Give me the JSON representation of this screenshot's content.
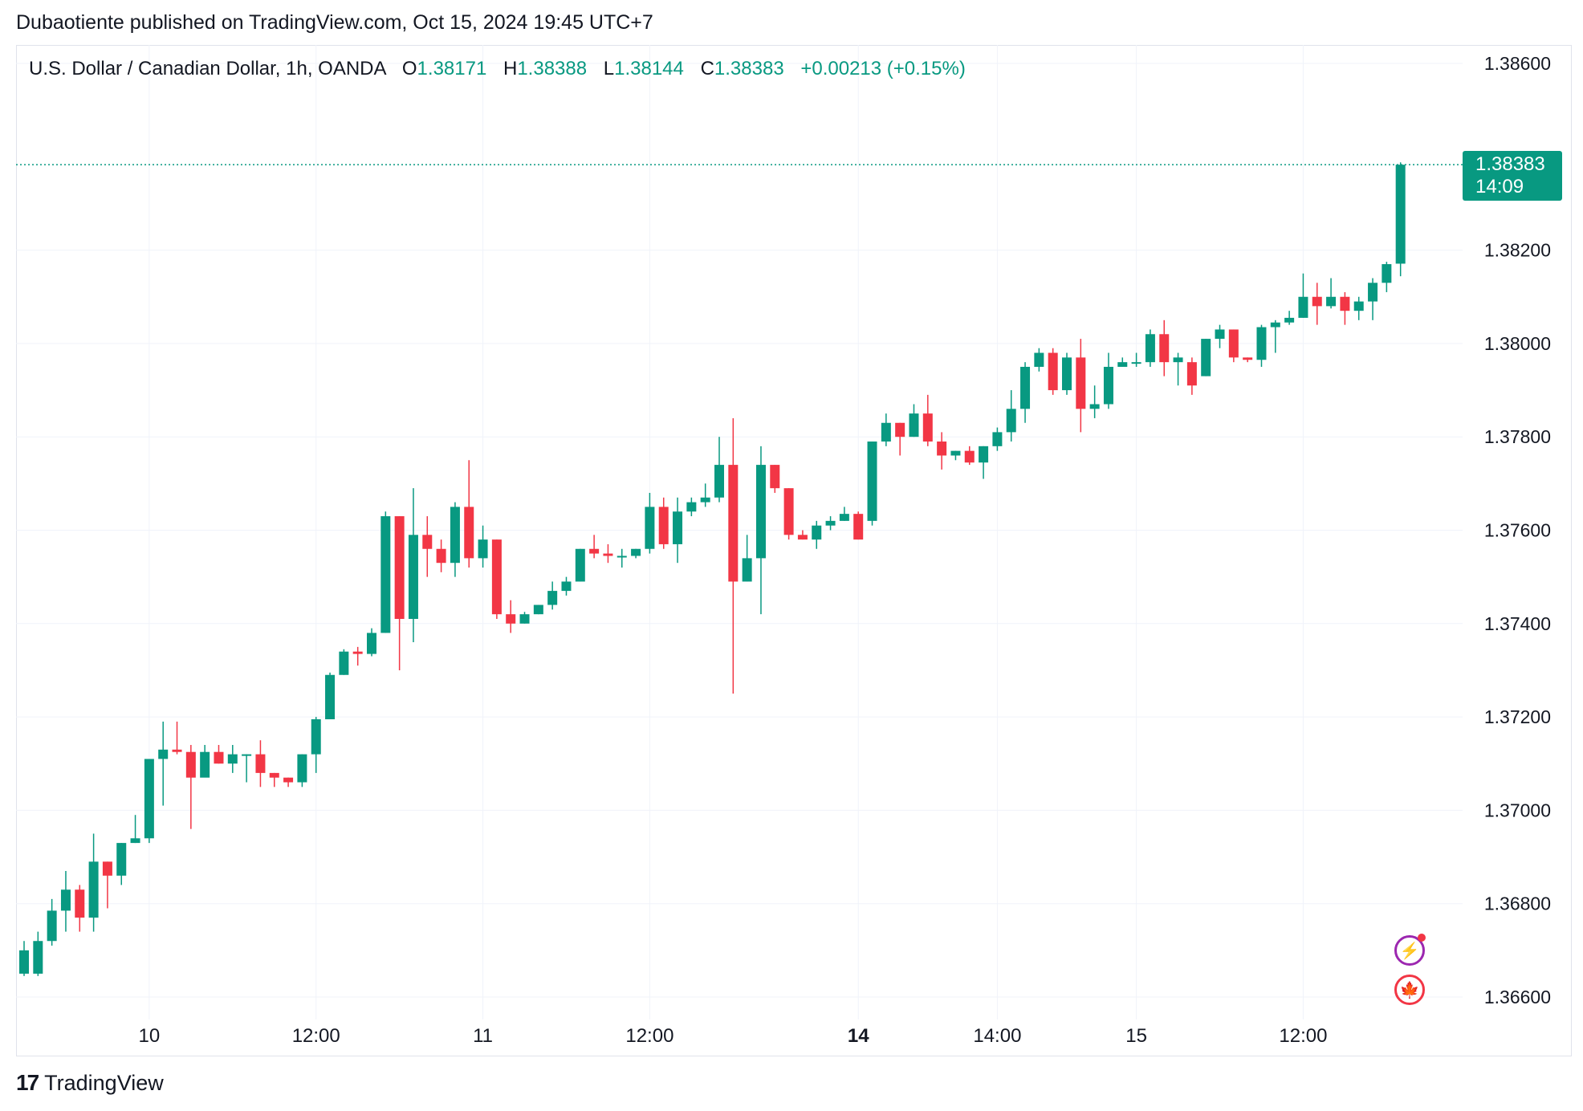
{
  "header": {
    "publisher_line": "Dubaotiente published on TradingView.com, Oct 15, 2024 19:45 UTC+7"
  },
  "legend": {
    "symbol": "U.S. Dollar / Canadian Dollar, 1h, OANDA",
    "open_label": "O",
    "open_value": "1.38171",
    "high_label": "H",
    "high_value": "1.38388",
    "low_label": "L",
    "low_value": "1.38144",
    "close_label": "C",
    "close_value": "1.38383",
    "change": "+0.00213 (+0.15%)"
  },
  "last_price": {
    "price": "1.38383",
    "countdown": "14:09"
  },
  "footer": {
    "brand": "TradingView",
    "logo_text": "17"
  },
  "badges": {
    "bolt": "bolt-icon",
    "flag": "canada-flag-icon"
  },
  "colors": {
    "up": "#089981",
    "down": "#f23645",
    "grid": "#f0f3fa",
    "axis_text": "#131722"
  },
  "chart_data": {
    "type": "candlestick",
    "ylim": [
      1.3656,
      1.3866
    ],
    "y_ticks": [
      "1.38600",
      "1.38200",
      "1.38000",
      "1.37800",
      "1.37600",
      "1.37400",
      "1.37200",
      "1.37000",
      "1.36800",
      "1.36600"
    ],
    "x_ticks": [
      {
        "label": "10",
        "index": 9,
        "bold": false
      },
      {
        "label": "12:00",
        "index": 21,
        "bold": false
      },
      {
        "label": "11",
        "index": 33,
        "bold": false
      },
      {
        "label": "12:00",
        "index": 45,
        "bold": false
      },
      {
        "label": "14",
        "index": 60,
        "bold": true
      },
      {
        "label": "14:00",
        "index": 70,
        "bold": false
      },
      {
        "label": "15",
        "index": 80,
        "bold": false
      },
      {
        "label": "12:00",
        "index": 92,
        "bold": false
      }
    ],
    "last_price_value": 1.38383,
    "ohlc": [
      [
        1.3665,
        1.3672,
        1.36645,
        1.367
      ],
      [
        1.3665,
        1.3674,
        1.36645,
        1.3672
      ],
      [
        1.3672,
        1.3681,
        1.3671,
        1.36785
      ],
      [
        1.36785,
        1.3687,
        1.3674,
        1.3683
      ],
      [
        1.3683,
        1.3684,
        1.3674,
        1.3677
      ],
      [
        1.3677,
        1.3695,
        1.3674,
        1.3689
      ],
      [
        1.3689,
        1.3689,
        1.3679,
        1.3686
      ],
      [
        1.3686,
        1.3693,
        1.3684,
        1.3693
      ],
      [
        1.3693,
        1.3699,
        1.3693,
        1.3694
      ],
      [
        1.3694,
        1.371,
        1.3693,
        1.3711
      ],
      [
        1.3711,
        1.3719,
        1.3701,
        1.3713
      ],
      [
        1.3713,
        1.3719,
        1.3712,
        1.37125
      ],
      [
        1.37125,
        1.3714,
        1.3696,
        1.3707
      ],
      [
        1.3707,
        1.3714,
        1.3708,
        1.37125
      ],
      [
        1.37125,
        1.3714,
        1.371,
        1.371
      ],
      [
        1.371,
        1.3714,
        1.3708,
        1.3712
      ],
      [
        1.3712,
        1.3712,
        1.3706,
        1.3712
      ],
      [
        1.3712,
        1.3715,
        1.3705,
        1.3708
      ],
      [
        1.3708,
        1.3708,
        1.3705,
        1.3707
      ],
      [
        1.3707,
        1.3707,
        1.3705,
        1.3706
      ],
      [
        1.3706,
        1.3712,
        1.3705,
        1.3712
      ],
      [
        1.3712,
        1.372,
        1.3708,
        1.37195
      ],
      [
        1.37195,
        1.37295,
        1.37195,
        1.3729
      ],
      [
        1.3729,
        1.37345,
        1.3729,
        1.3734
      ],
      [
        1.3734,
        1.3735,
        1.3731,
        1.37335
      ],
      [
        1.37335,
        1.3739,
        1.3733,
        1.3738
      ],
      [
        1.3738,
        1.3764,
        1.3738,
        1.3763
      ],
      [
        1.3763,
        1.3763,
        1.373,
        1.3741
      ],
      [
        1.3741,
        1.3769,
        1.3736,
        1.3759
      ],
      [
        1.3759,
        1.3763,
        1.375,
        1.3756
      ],
      [
        1.3756,
        1.3758,
        1.3751,
        1.3753
      ],
      [
        1.3753,
        1.3766,
        1.375,
        1.3765
      ],
      [
        1.3765,
        1.3775,
        1.3752,
        1.3754
      ],
      [
        1.3754,
        1.3761,
        1.3752,
        1.3758
      ],
      [
        1.3758,
        1.3758,
        1.3741,
        1.3742
      ],
      [
        1.3742,
        1.3745,
        1.3738,
        1.374
      ],
      [
        1.374,
        1.37425,
        1.374,
        1.3742
      ],
      [
        1.3742,
        1.3744,
        1.3742,
        1.3744
      ],
      [
        1.3744,
        1.3749,
        1.3743,
        1.3747
      ],
      [
        1.3747,
        1.375,
        1.3746,
        1.3749
      ],
      [
        1.3749,
        1.3756,
        1.3749,
        1.3756
      ],
      [
        1.3756,
        1.3759,
        1.3754,
        1.3755
      ],
      [
        1.3755,
        1.3757,
        1.3753,
        1.37545
      ],
      [
        1.37545,
        1.3756,
        1.3752,
        1.37545
      ],
      [
        1.37545,
        1.3756,
        1.3754,
        1.3756
      ],
      [
        1.3756,
        1.3768,
        1.3755,
        1.3765
      ],
      [
        1.3765,
        1.3767,
        1.3756,
        1.3757
      ],
      [
        1.3757,
        1.3767,
        1.3753,
        1.3764
      ],
      [
        1.3764,
        1.3767,
        1.3763,
        1.3766
      ],
      [
        1.3766,
        1.377,
        1.3765,
        1.3767
      ],
      [
        1.3767,
        1.378,
        1.3766,
        1.3774
      ],
      [
        1.3774,
        1.3784,
        1.3725,
        1.3749
      ],
      [
        1.3749,
        1.3759,
        1.3749,
        1.3754
      ],
      [
        1.3754,
        1.3778,
        1.3742,
        1.3774
      ],
      [
        1.3774,
        1.3774,
        1.3768,
        1.3769
      ],
      [
        1.3769,
        1.3769,
        1.3758,
        1.3759
      ],
      [
        1.3759,
        1.376,
        1.3758,
        1.3758
      ],
      [
        1.3758,
        1.3762,
        1.3756,
        1.3761
      ],
      [
        1.3761,
        1.3763,
        1.376,
        1.3762
      ],
      [
        1.3762,
        1.3765,
        1.3762,
        1.37635
      ],
      [
        1.37635,
        1.3764,
        1.3758,
        1.3758
      ],
      [
        1.3762,
        1.3779,
        1.3761,
        1.3779
      ],
      [
        1.3779,
        1.3785,
        1.3778,
        1.3783
      ],
      [
        1.3783,
        1.3783,
        1.3776,
        1.378
      ],
      [
        1.378,
        1.3787,
        1.378,
        1.3785
      ],
      [
        1.3785,
        1.3789,
        1.3778,
        1.3779
      ],
      [
        1.3779,
        1.3781,
        1.3773,
        1.3776
      ],
      [
        1.3776,
        1.3777,
        1.3775,
        1.3777
      ],
      [
        1.3777,
        1.3778,
        1.3774,
        1.37745
      ],
      [
        1.37745,
        1.3778,
        1.3771,
        1.3778
      ],
      [
        1.3778,
        1.3782,
        1.3777,
        1.3781
      ],
      [
        1.3781,
        1.379,
        1.3779,
        1.3786
      ],
      [
        1.3786,
        1.3796,
        1.3783,
        1.3795
      ],
      [
        1.3795,
        1.3799,
        1.3794,
        1.3798
      ],
      [
        1.3798,
        1.3799,
        1.3789,
        1.379
      ],
      [
        1.379,
        1.3798,
        1.3789,
        1.3797
      ],
      [
        1.3797,
        1.3801,
        1.3781,
        1.3786
      ],
      [
        1.3786,
        1.3791,
        1.3784,
        1.3787
      ],
      [
        1.3787,
        1.3798,
        1.3786,
        1.3795
      ],
      [
        1.3795,
        1.3797,
        1.3795,
        1.3796
      ],
      [
        1.3796,
        1.3798,
        1.3795,
        1.3796
      ],
      [
        1.3796,
        1.3803,
        1.3795,
        1.3802
      ],
      [
        1.3802,
        1.3805,
        1.3793,
        1.3796
      ],
      [
        1.3796,
        1.3798,
        1.3791,
        1.3797
      ],
      [
        1.3796,
        1.3797,
        1.3789,
        1.3791
      ],
      [
        1.3793,
        1.3801,
        1.3793,
        1.3801
      ],
      [
        1.3801,
        1.3804,
        1.3799,
        1.3803
      ],
      [
        1.3803,
        1.3803,
        1.3796,
        1.3797
      ],
      [
        1.3797,
        1.3797,
        1.3796,
        1.37965
      ],
      [
        1.37965,
        1.3804,
        1.3795,
        1.38035
      ],
      [
        1.38035,
        1.3805,
        1.3798,
        1.38045
      ],
      [
        1.38045,
        1.3807,
        1.3804,
        1.38055
      ],
      [
        1.38055,
        1.3815,
        1.38055,
        1.381
      ],
      [
        1.381,
        1.3813,
        1.3804,
        1.3808
      ],
      [
        1.3808,
        1.3814,
        1.38075,
        1.381
      ],
      [
        1.381,
        1.3811,
        1.3804,
        1.3807
      ],
      [
        1.3807,
        1.381,
        1.3805,
        1.3809
      ],
      [
        1.3809,
        1.3814,
        1.3805,
        1.3813
      ],
      [
        1.3813,
        1.38175,
        1.3811,
        1.3817
      ],
      [
        1.38171,
        1.38388,
        1.38144,
        1.38383
      ]
    ]
  }
}
